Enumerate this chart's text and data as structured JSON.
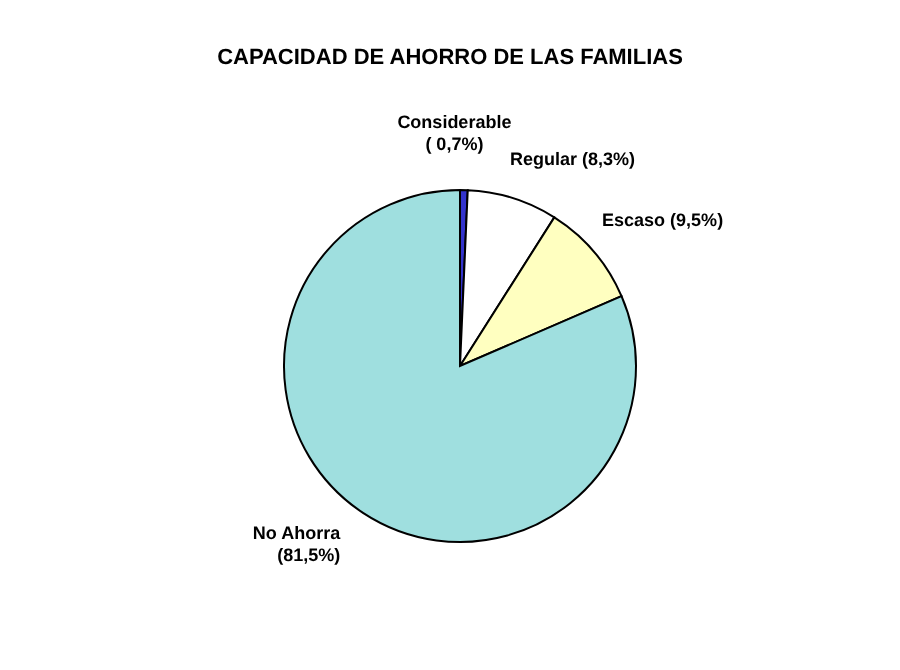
{
  "chart_data": {
    "type": "pie",
    "title": "CAPACIDAD DE AHORRO DE LAS FAMILIAS",
    "categories": [
      "Considerable",
      "Regular",
      "Escaso",
      "No Ahorra"
    ],
    "values": [
      0.7,
      8.3,
      9.5,
      81.5
    ],
    "colors": [
      "#3333cc",
      "#ffffff",
      "#ffffc0",
      "#9fdfdf"
    ],
    "value_labels": [
      "( 0,7%)",
      "(8,3%)",
      "(9,5%)",
      "(81,5%)"
    ],
    "legend": false
  }
}
